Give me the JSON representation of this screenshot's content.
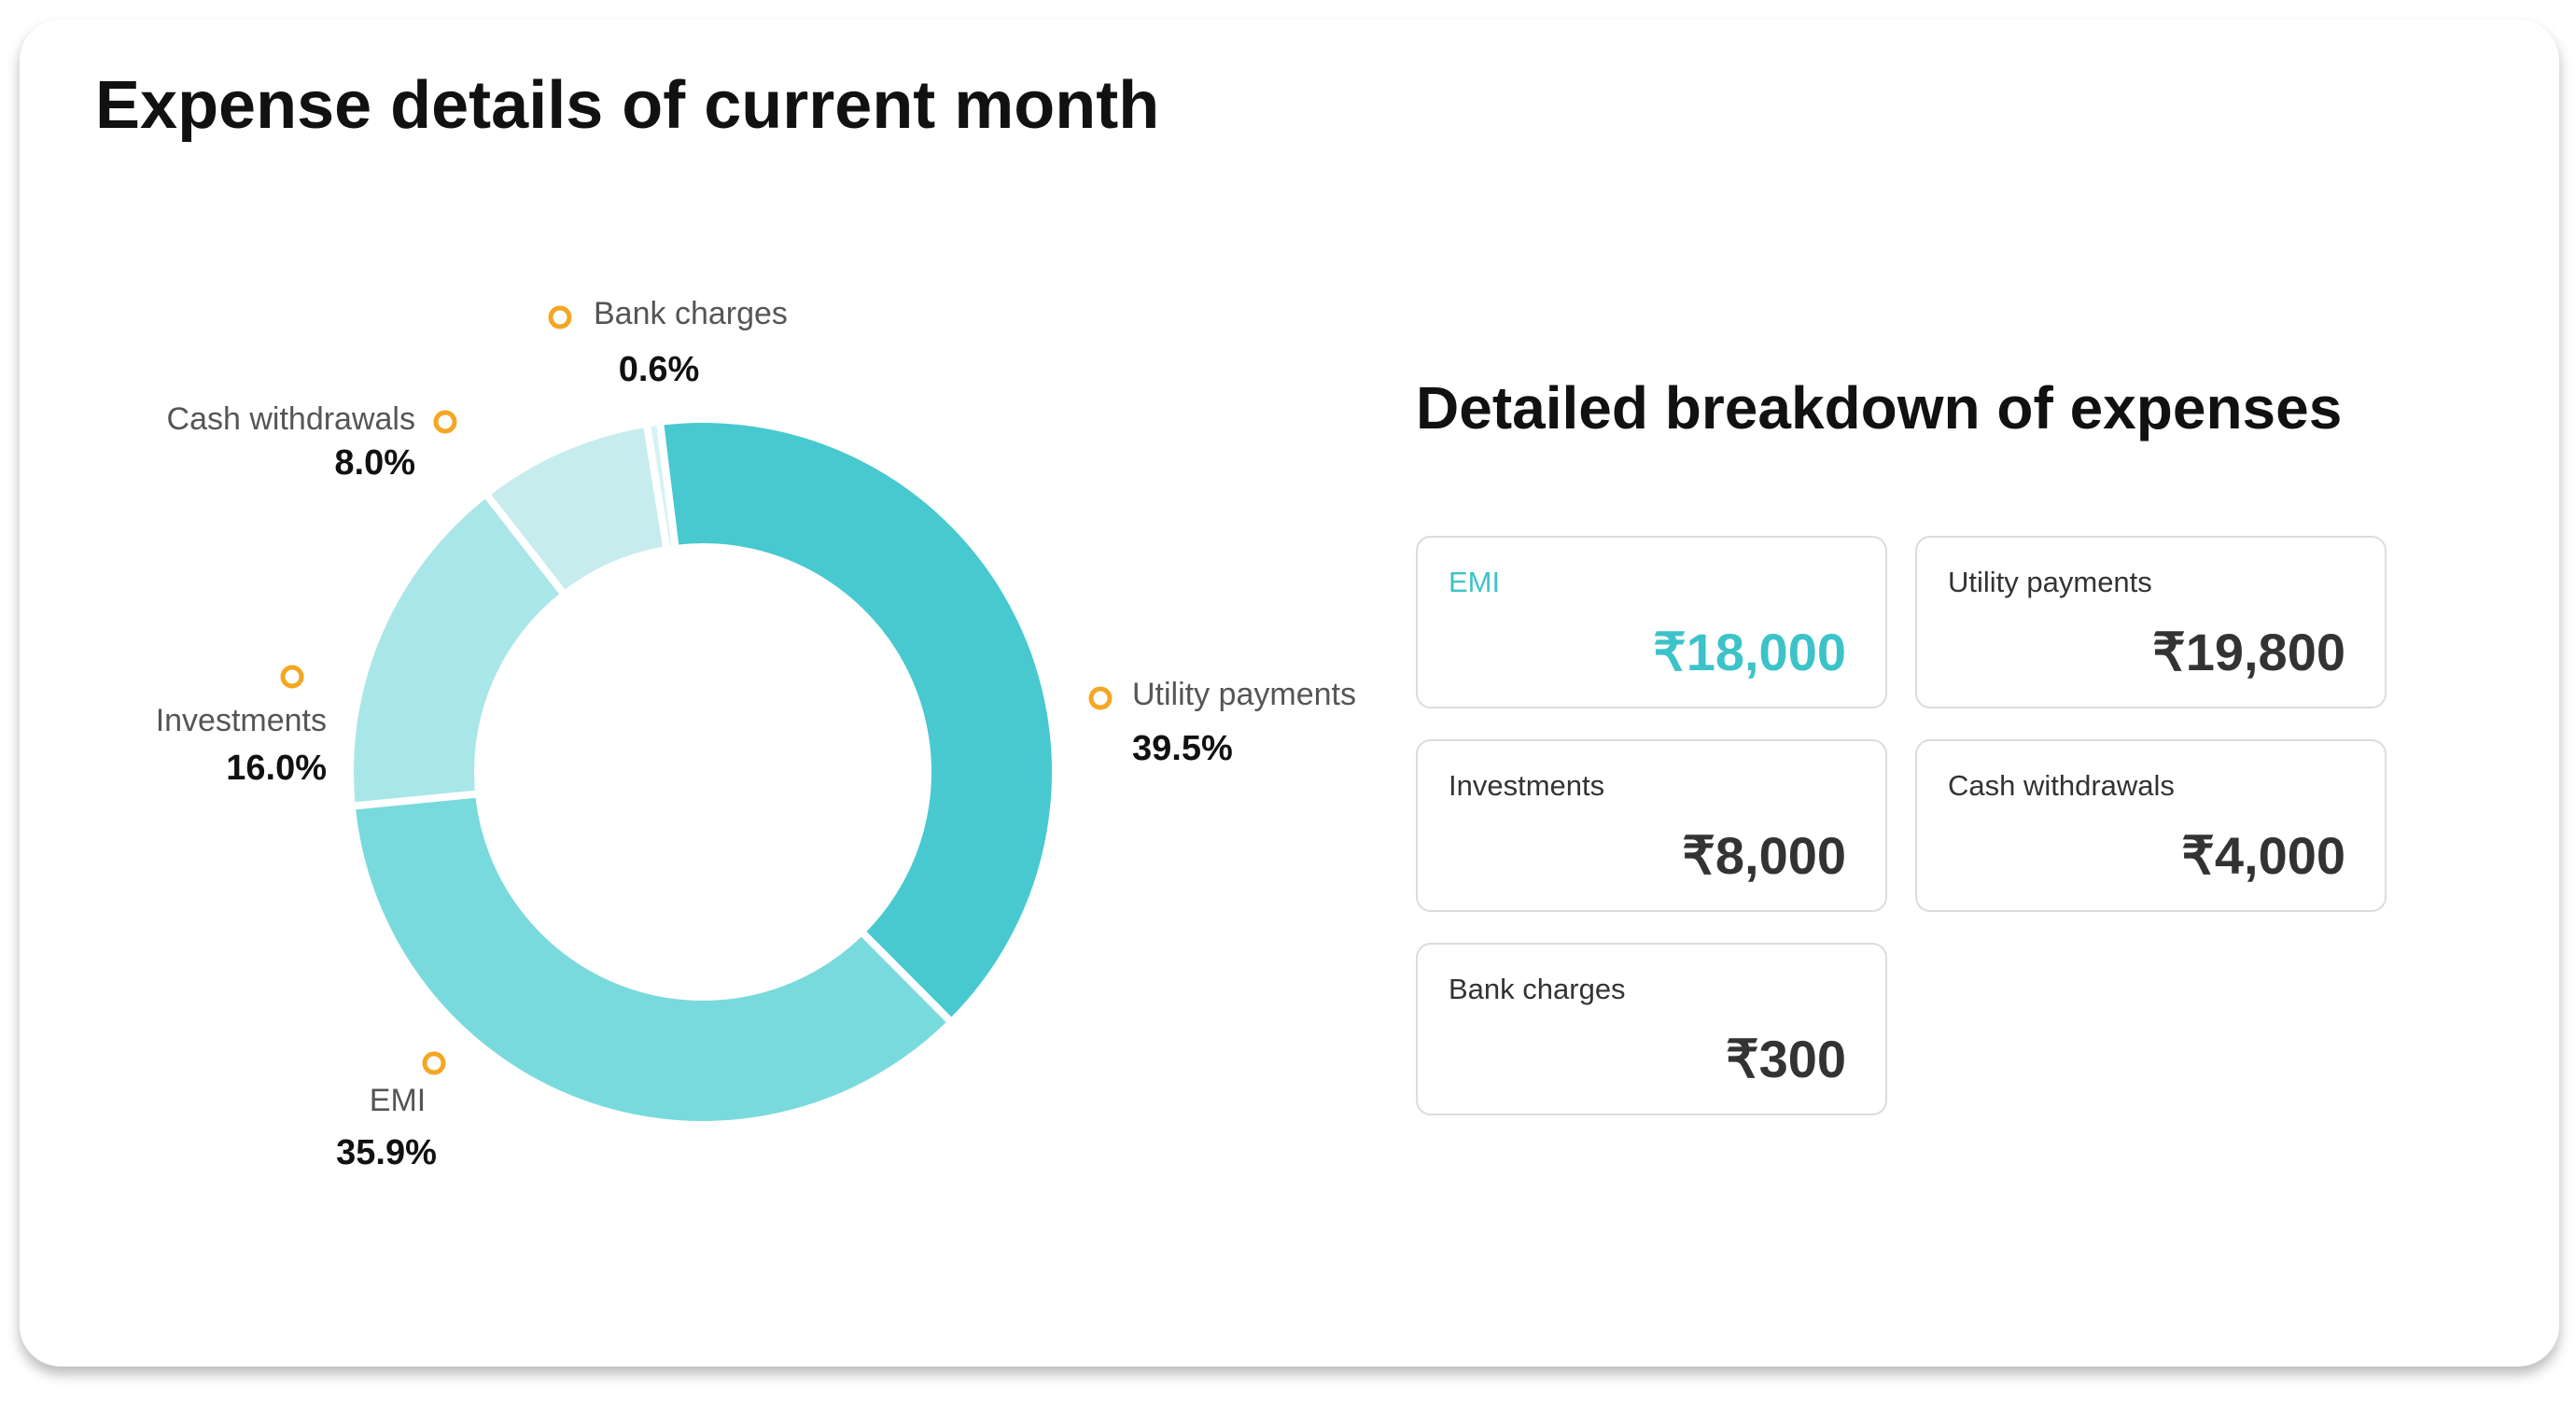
{
  "chart_data": {
    "type": "pie",
    "title": "Expense details of current month",
    "categories": [
      "Utility payments",
      "EMI",
      "Investments",
      "Cash withdrawals",
      "Bank charges"
    ],
    "values": [
      39.5,
      35.9,
      16.0,
      8.0,
      0.6
    ],
    "value_labels": [
      "39.5%",
      "35.9%",
      "16.0%",
      "8.0%",
      "0.6%"
    ],
    "colors": [
      "#47c9cf",
      "#79dadd",
      "#a9e6e8",
      "#c6eced",
      "#d6f2f3"
    ],
    "marker_color": "#f5a623"
  },
  "breakdown": {
    "title": "Detailed breakdown of expenses",
    "cards": [
      {
        "label": "EMI",
        "amount": "₹18,000",
        "color": "#3cc3c9"
      },
      {
        "label": "Utility payments",
        "amount": "₹19,800",
        "color": "#333333"
      },
      {
        "label": "Investments",
        "amount": "₹8,000",
        "color": "#333333"
      },
      {
        "label": "Cash withdrawals",
        "amount": "₹4,000",
        "color": "#333333"
      },
      {
        "label": "Bank charges",
        "amount": "₹300",
        "color": "#333333"
      }
    ]
  }
}
